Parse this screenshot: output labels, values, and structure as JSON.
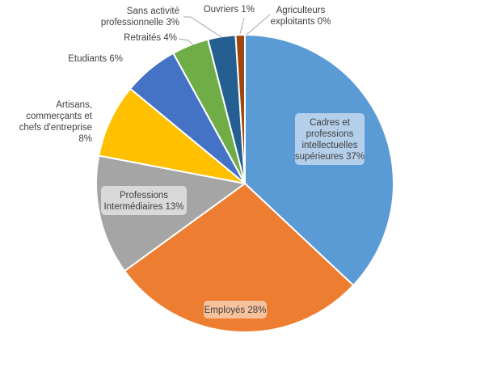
{
  "chart_data": {
    "type": "pie",
    "title": "",
    "slices": [
      {
        "label_lines": [
          "Cadres et",
          "professions",
          "intellectuelles",
          "supérieures 37%"
        ],
        "value": 37,
        "color": "#5b9bd5",
        "label_box": "#b4cfea"
      },
      {
        "label_lines": [
          "Employés 28%"
        ],
        "value": 28,
        "color": "#ed7d31",
        "label_box": "#f6c29d"
      },
      {
        "label_lines": [
          "Professions",
          "Intermédiaires 13%"
        ],
        "value": 13,
        "color": "#a5a5a5",
        "label_box": "#d9d9d9"
      },
      {
        "label_lines": [
          "Artisans,",
          "commerçants et",
          "chefs d'entreprise",
          "8%"
        ],
        "value": 8,
        "color": "#ffc000"
      },
      {
        "label_lines": [
          "Etudiants 6%"
        ],
        "value": 6,
        "color": "#4472c4"
      },
      {
        "label_lines": [
          "Retraités 4%"
        ],
        "value": 4,
        "color": "#70ad47"
      },
      {
        "label_lines": [
          "Sans activité",
          "professionnelle 3%"
        ],
        "value": 3,
        "color": "#255e91"
      },
      {
        "label_lines": [
          "Ouvriers 1%"
        ],
        "value": 1,
        "color": "#9e480e"
      },
      {
        "label_lines": [
          "Agriculteurs",
          "exploitants 0%"
        ],
        "value": 0,
        "color": "#636363"
      }
    ]
  }
}
